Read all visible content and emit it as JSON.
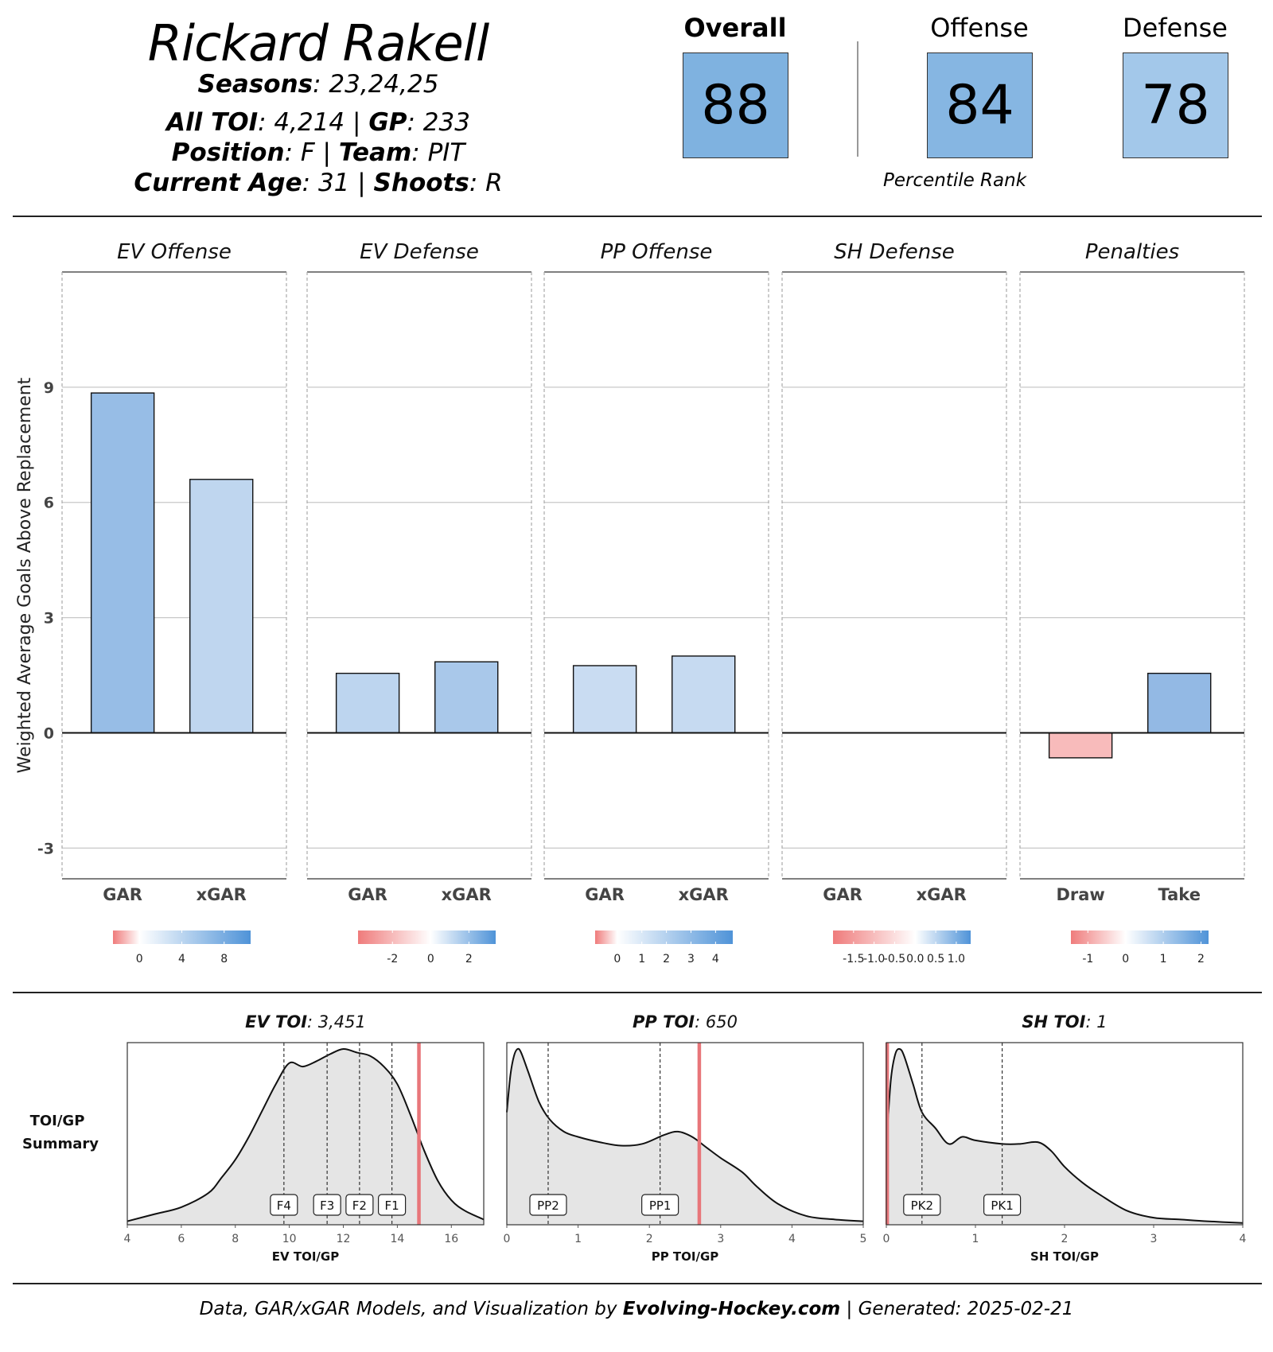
{
  "header": {
    "player_name": "Rickard Rakell",
    "seasons_label": "Seasons",
    "seasons_value": ": 23,24,25",
    "toi_label": "All TOI",
    "toi_value": ": 4,214 | ",
    "gp_label": "GP",
    "gp_value": ": 233",
    "position_label": "Position",
    "position_value": ": F | ",
    "team_label": "Team",
    "team_value": ": PIT",
    "age_label": "Current Age",
    "age_value": ": 31 | ",
    "shoots_label": "Shoots",
    "shoots_value": ": R"
  },
  "ranks": {
    "overall_label": "Overall",
    "overall_value": "88",
    "offense_label": "Offense",
    "offense_value": "84",
    "defense_label": "Defense",
    "defense_value": "78",
    "percentile_label": "Percentile Rank",
    "colors": {
      "overall": "#7fb2e0",
      "offense": "#86b6e2",
      "defense": "#a3c8ea"
    }
  },
  "chart_data": [
    {
      "type": "bar",
      "ylabel": "Weighted Average Goals Above Replacement",
      "ylim": [
        -3.8,
        12
      ],
      "yticks": [
        -3,
        0,
        3,
        6,
        9
      ],
      "grid": true,
      "panels": [
        {
          "title": "EV Offense",
          "categories": [
            "GAR",
            "xGAR"
          ],
          "values": [
            8.85,
            6.6
          ],
          "colors": [
            "#97bde6",
            "#bfd6ef"
          ],
          "legend": {
            "min": -2.5,
            "max": 10.5,
            "ticks": [
              0,
              4,
              8
            ],
            "labels": [
              "0",
              "4",
              "8"
            ]
          }
        },
        {
          "title": "EV Defense",
          "categories": [
            "GAR",
            "xGAR"
          ],
          "values": [
            1.55,
            1.85
          ],
          "colors": [
            "#bdd5ef",
            "#a9c8ea"
          ],
          "legend": {
            "min": -3.8,
            "max": 3.4,
            "ticks": [
              -2,
              0,
              2
            ],
            "labels": [
              "-2",
              "0",
              "2"
            ]
          }
        },
        {
          "title": "PP Offense",
          "categories": [
            "GAR",
            "xGAR"
          ],
          "values": [
            1.75,
            2.0
          ],
          "colors": [
            "#c9dcf2",
            "#c6daf1"
          ],
          "legend": {
            "min": -0.9,
            "max": 4.7,
            "ticks": [
              0,
              1,
              2,
              3,
              4
            ],
            "labels": [
              "0",
              "1",
              "2",
              "3",
              "4"
            ]
          }
        },
        {
          "title": "SH Defense",
          "categories": [
            "GAR",
            "xGAR"
          ],
          "values": [
            0.0,
            0.0
          ],
          "colors": [
            "#f2f2f2",
            "#f2f2f2"
          ],
          "legend": {
            "min": -2.0,
            "max": 1.35,
            "ticks": [
              -1.5,
              -1.0,
              -0.5,
              0.0,
              0.5,
              1.0
            ],
            "labels": [
              "-1.5",
              "-1.0",
              "-0.5",
              "0.0",
              "0.5",
              "1.0"
            ]
          }
        },
        {
          "title": "Penalties",
          "categories": [
            "Draw",
            "Take"
          ],
          "values": [
            -0.65,
            1.55
          ],
          "colors": [
            "#f8bbbb",
            "#93b9e4"
          ],
          "legend": {
            "min": -1.45,
            "max": 2.2,
            "ticks": [
              -1,
              0,
              1,
              2
            ],
            "labels": [
              "-1",
              "0",
              "1",
              "2"
            ]
          }
        }
      ]
    },
    {
      "type": "area",
      "row_label_1": "TOI/GP",
      "row_label_2": "Summary",
      "panels": [
        {
          "title_bold": "EV TOI",
          "title_rest": ": 3,451",
          "xlabel": "EV TOI/GP",
          "xlim": [
            4,
            17.2
          ],
          "xticks": [
            4,
            6,
            8,
            10,
            12,
            14,
            16
          ],
          "density_x": [
            4,
            5,
            6,
            7,
            7.5,
            8,
            8.5,
            9,
            9.5,
            10,
            10.5,
            11,
            11.5,
            12,
            12.5,
            13,
            13.5,
            14,
            14.5,
            15,
            15.5,
            16,
            16.5,
            17.2
          ],
          "density_y": [
            0.02,
            0.06,
            0.1,
            0.18,
            0.27,
            0.37,
            0.5,
            0.65,
            0.8,
            0.92,
            0.9,
            0.93,
            0.97,
            1.0,
            0.98,
            0.96,
            0.9,
            0.8,
            0.62,
            0.42,
            0.25,
            0.14,
            0.08,
            0.03
          ],
          "markers": [
            {
              "label": "F4",
              "x": 9.8
            },
            {
              "label": "F3",
              "x": 11.4
            },
            {
              "label": "F2",
              "x": 12.6
            },
            {
              "label": "F1",
              "x": 13.8
            }
          ],
          "player_value": 14.8
        },
        {
          "title_bold": "PP TOI",
          "title_rest": ": 650",
          "xlabel": "PP TOI/GP",
          "xlim": [
            0,
            5
          ],
          "xticks": [
            0,
            1,
            2,
            3,
            4,
            5
          ],
          "density_x": [
            0,
            0.05,
            0.1,
            0.15,
            0.2,
            0.3,
            0.45,
            0.6,
            0.8,
            1.0,
            1.3,
            1.6,
            1.9,
            2.2,
            2.4,
            2.6,
            2.8,
            3.0,
            3.3,
            3.5,
            3.8,
            4.2,
            4.6,
            5.0
          ],
          "density_y": [
            0.64,
            0.85,
            0.96,
            1.0,
            0.98,
            0.87,
            0.7,
            0.6,
            0.53,
            0.5,
            0.47,
            0.45,
            0.46,
            0.51,
            0.53,
            0.5,
            0.44,
            0.38,
            0.3,
            0.22,
            0.12,
            0.05,
            0.03,
            0.02
          ],
          "markers": [
            {
              "label": "PP2",
              "x": 0.58
            },
            {
              "label": "PP1",
              "x": 2.15
            }
          ],
          "player_value": 2.7
        },
        {
          "title_bold": "SH TOI",
          "title_rest": ": 1",
          "xlabel": "SH TOI/GP",
          "xlim": [
            0,
            4
          ],
          "xticks": [
            0,
            1,
            2,
            3,
            4
          ],
          "density_x": [
            0,
            0.05,
            0.1,
            0.15,
            0.2,
            0.3,
            0.4,
            0.55,
            0.7,
            0.85,
            1.0,
            1.3,
            1.5,
            1.7,
            1.85,
            2.0,
            2.2,
            2.4,
            2.7,
            3.0,
            3.3,
            3.6,
            4.0
          ],
          "density_y": [
            0.45,
            0.82,
            0.97,
            1.0,
            0.96,
            0.8,
            0.64,
            0.55,
            0.46,
            0.5,
            0.48,
            0.46,
            0.46,
            0.47,
            0.42,
            0.33,
            0.24,
            0.17,
            0.08,
            0.04,
            0.03,
            0.02,
            0.01
          ],
          "markers": [
            {
              "label": "PK2",
              "x": 0.4
            },
            {
              "label": "PK1",
              "x": 1.3
            }
          ],
          "player_value": 0.01
        }
      ]
    }
  ],
  "footer": {
    "prefix": "Data, GAR/xGAR Models, and Visualization by ",
    "brand": "Evolving-Hockey.com",
    "suffix": " | Generated: 2025-02-21"
  }
}
